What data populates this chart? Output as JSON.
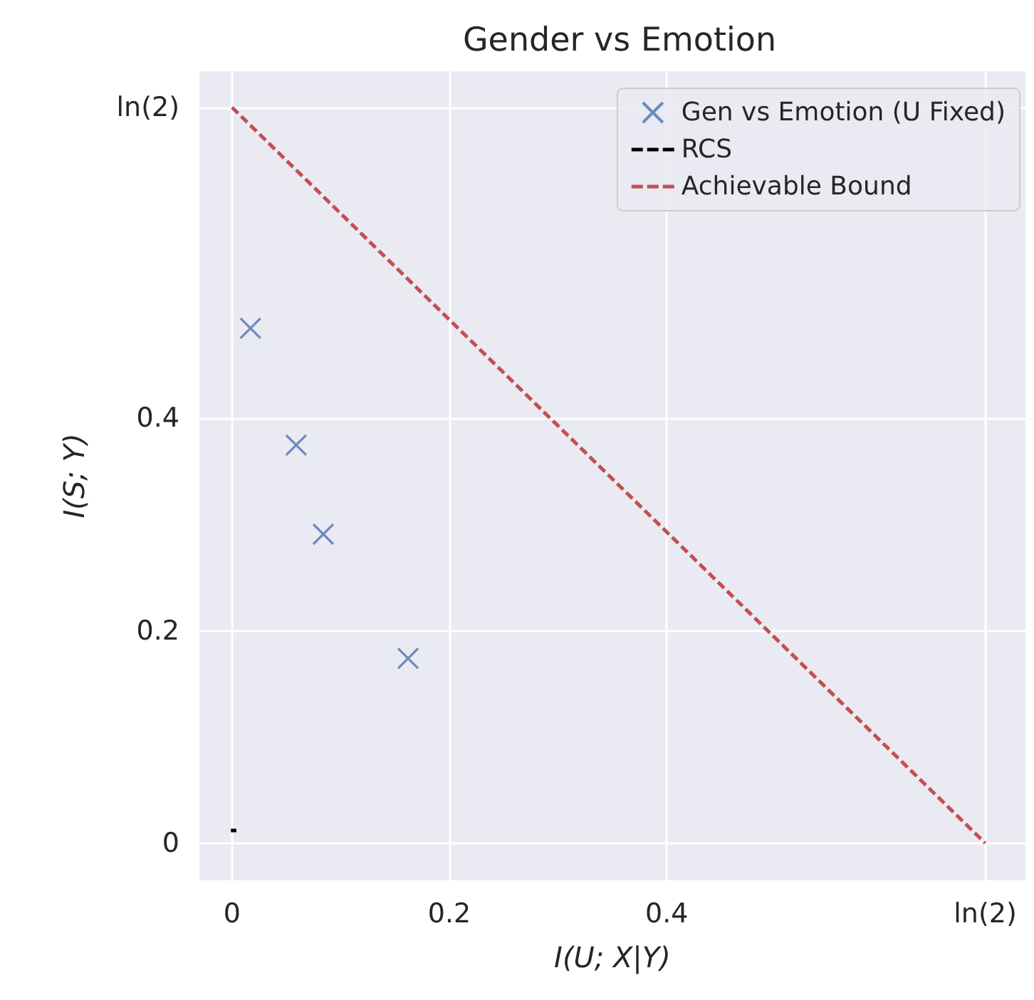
{
  "chart_data": {
    "type": "scatter",
    "title": "Gender vs Emotion",
    "xlabel": "I(U; X|Y)",
    "ylabel": "I(S; Y)",
    "xlim": [
      -0.03,
      0.73
    ],
    "ylim": [
      -0.035,
      0.727
    ],
    "xticks": [
      0,
      0.2,
      0.4,
      {
        "value": 0.693,
        "label": "ln(2)"
      }
    ],
    "yticks": [
      0,
      0.2,
      0.4,
      {
        "value": 0.693,
        "label": "ln(2)"
      }
    ],
    "grid": true,
    "legend": "top right",
    "series": [
      {
        "name": "Gen vs Emotion (U Fixed)",
        "marker": "cross",
        "color": "#4c72b0",
        "x": [
          0.017,
          0.059,
          0.084,
          0.162
        ],
        "values": [
          0.485,
          0.375,
          0.291,
          0.174
        ]
      },
      {
        "name": "RCS",
        "type": "line",
        "line_style": "dashed",
        "marker": "none",
        "color": "#000000",
        "x": [
          -0.001,
          0.004
        ],
        "values": [
          0.012,
          0.012
        ]
      },
      {
        "name": "Achievable Bound",
        "type": "line",
        "line_style": "dashed",
        "marker": "none",
        "color": "#c44e52",
        "x": [
          0,
          0.693
        ],
        "values": [
          0.693,
          0
        ]
      }
    ]
  }
}
